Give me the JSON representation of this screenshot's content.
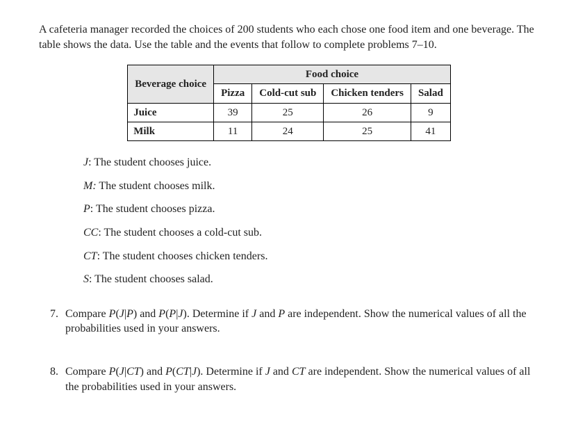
{
  "intro": "A cafeteria manager recorded the choices of 200 students who each chose one food item and one beverage. The table shows the data. Use the table and the events that follow to complete problems 7–10.",
  "table": {
    "bev_header": "Beverage choice",
    "food_header": "Food choice",
    "columns": [
      "Pizza",
      "Cold-cut sub",
      "Chicken tenders",
      "Salad"
    ],
    "rows": [
      {
        "label": "Juice",
        "values": [
          "39",
          "25",
          "26",
          "9"
        ]
      },
      {
        "label": "Milk",
        "values": [
          "11",
          "24",
          "25",
          "41"
        ]
      }
    ]
  },
  "events": [
    {
      "sym": "J",
      "desc": "The student chooses juice."
    },
    {
      "sym": "M",
      "desc": "The student chooses milk."
    },
    {
      "sym": "P",
      "desc": "The student chooses pizza."
    },
    {
      "sym": "CC",
      "desc": "The student chooses a cold-cut sub."
    },
    {
      "sym": "CT",
      "desc": "The student chooses chicken tenders."
    },
    {
      "sym": "S",
      "desc": "The student chooses salad."
    }
  ],
  "problems": [
    {
      "num": "7.",
      "html": "Compare <span class='mi'>P</span>(<span class='mi'>J</span>|<span class='mi'>P</span>) and <span class='mi'>P</span>(<span class='mi'>P</span>|<span class='mi'>J</span>). Determine if <span class='mi'>J</span> and <span class='mi'>P</span> are independent. Show the numerical values of all the probabilities used in your answers."
    },
    {
      "num": "8.",
      "html": "Compare <span class='mi'>P</span>(<span class='mi'>J</span>|<span class='mi'>CT</span>) and <span class='mi'>P</span>(<span class='mi'>CT</span>|<span class='mi'>J</span>). Determine if <span class='mi'>J</span> and <span class='mi'>CT</span> are independent. Show the numerical values of all the probabilities used in your answers."
    }
  ]
}
